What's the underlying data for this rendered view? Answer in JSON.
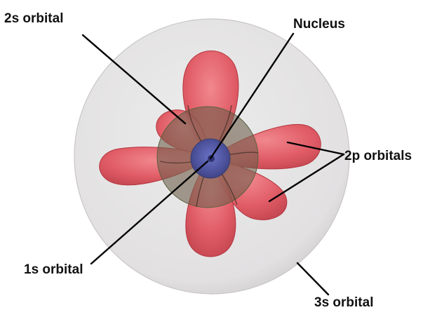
{
  "labels": {
    "orbital_2s": "2s orbital",
    "nucleus": "Nucleus",
    "orbitals_2p": "2p orbitals",
    "orbital_1s": "1s orbital",
    "orbital_3s": "3s orbital"
  },
  "colors": {
    "orbital_3s_fill": "#e4e2e3",
    "orbital_2p_lobe": "#e44e58",
    "orbital_2s_sphere": "#7b6a57",
    "orbital_1s_core": "#4f55a0",
    "label_text": "#111111"
  }
}
